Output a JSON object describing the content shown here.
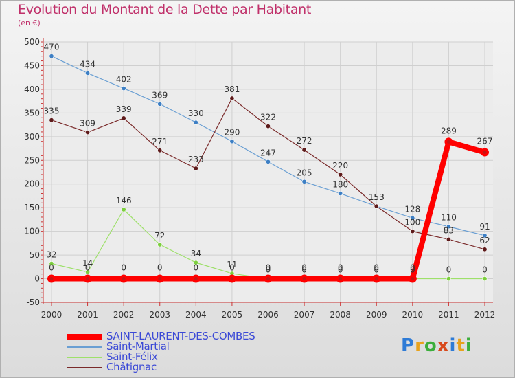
{
  "chart_data": {
    "type": "line",
    "title": "Evolution du Montant de la Dette par Habitant",
    "subtitle": "(en €)",
    "x": [
      "2000",
      "2001",
      "2002",
      "2003",
      "2004",
      "2005",
      "2006",
      "2007",
      "2008",
      "2009",
      "2010",
      "2011",
      "2012"
    ],
    "ylim": [
      -50,
      500
    ],
    "yticks": [
      -50,
      0,
      50,
      100,
      150,
      200,
      250,
      300,
      350,
      400,
      450,
      500
    ],
    "grid": true,
    "legend_position": "bottom-left",
    "series": [
      {
        "name": "Saint-Martial",
        "color": "#6a9fd3",
        "marker": "#3d7fc4",
        "width": 1.2,
        "values": [
          470,
          434,
          402,
          369,
          330,
          290,
          247,
          205,
          180,
          153,
          128,
          110,
          91
        ]
      },
      {
        "name": "Saint-Félix",
        "color": "#9ee06a",
        "marker": "#7ccf3e",
        "width": 1.2,
        "values": [
          32,
          14,
          146,
          72,
          34,
          11,
          0,
          0,
          0,
          0,
          0,
          0,
          0
        ]
      },
      {
        "name": "Châtignac",
        "color": "#7a2a2a",
        "marker": "#5e1b1b",
        "width": 1.2,
        "values": [
          335,
          309,
          339,
          271,
          233,
          381,
          322,
          272,
          220,
          153,
          100,
          83,
          62
        ]
      },
      {
        "name": "SAINT-LAURENT-DES-COMBES",
        "color": "#ff0000",
        "marker": "#ff0000",
        "width": 8,
        "values": [
          0,
          0,
          0,
          0,
          0,
          0,
          0,
          0,
          0,
          0,
          0,
          289,
          267
        ]
      }
    ]
  },
  "legend": [
    "SAINT-LAURENT-DES-COMBES",
    "Saint-Martial",
    "Saint-Félix",
    "Châtignac"
  ],
  "logo": {
    "text": "Proxiti",
    "colors": [
      "#2e7bd6",
      "#e8a21c",
      "#3cae3c",
      "#d84a1c",
      "#2e7bd6",
      "#e8a21c",
      "#3cae3c"
    ]
  }
}
